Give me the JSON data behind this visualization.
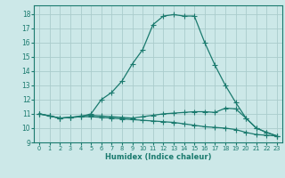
{
  "xlabel": "Humidex (Indice chaleur)",
  "xlim": [
    -0.5,
    23.5
  ],
  "ylim": [
    9,
    18.6
  ],
  "yticks": [
    9,
    10,
    11,
    12,
    13,
    14,
    15,
    16,
    17,
    18
  ],
  "xticks": [
    0,
    1,
    2,
    3,
    4,
    5,
    6,
    7,
    8,
    9,
    10,
    11,
    12,
    13,
    14,
    15,
    16,
    17,
    18,
    19,
    20,
    21,
    22,
    23
  ],
  "bg_color": "#cce8e8",
  "grid_color": "#aacccc",
  "line_color": "#1a7a6e",
  "line1_x": [
    0,
    1,
    2,
    3,
    4,
    5,
    6,
    7,
    8,
    9,
    10,
    11,
    12,
    13,
    14,
    15,
    16,
    17,
    18,
    19,
    20,
    21,
    22,
    23
  ],
  "line1_y": [
    11.0,
    10.85,
    10.7,
    10.75,
    10.8,
    10.8,
    10.75,
    10.7,
    10.65,
    10.6,
    10.55,
    10.5,
    10.45,
    10.4,
    10.3,
    10.2,
    10.1,
    10.05,
    10.0,
    9.9,
    9.7,
    9.55,
    9.5,
    9.45
  ],
  "line2_x": [
    0,
    1,
    2,
    3,
    4,
    5,
    6,
    7,
    8,
    9,
    10,
    11,
    12,
    13,
    14,
    15,
    16,
    17,
    18,
    19,
    20,
    21,
    22,
    23
  ],
  "line2_y": [
    11.0,
    10.85,
    10.7,
    10.75,
    10.85,
    10.9,
    10.85,
    10.8,
    10.75,
    10.7,
    10.8,
    10.9,
    11.0,
    11.05,
    11.1,
    11.15,
    11.15,
    11.1,
    11.4,
    11.35,
    10.7,
    10.0,
    9.7,
    9.45
  ],
  "line3_x": [
    0,
    1,
    2,
    3,
    4,
    5,
    6,
    7,
    8,
    9,
    10,
    11,
    12,
    13,
    14,
    15,
    16,
    17,
    18,
    19,
    20,
    21,
    22,
    23
  ],
  "line3_y": [
    11.0,
    10.85,
    10.7,
    10.75,
    10.8,
    11.0,
    12.0,
    12.5,
    13.3,
    14.5,
    15.5,
    17.25,
    17.85,
    17.95,
    17.85,
    17.85,
    16.0,
    14.4,
    13.0,
    11.8,
    10.7,
    10.0,
    9.7,
    9.45
  ],
  "marker": "+",
  "markersize": 4.5,
  "linewidth": 0.9
}
